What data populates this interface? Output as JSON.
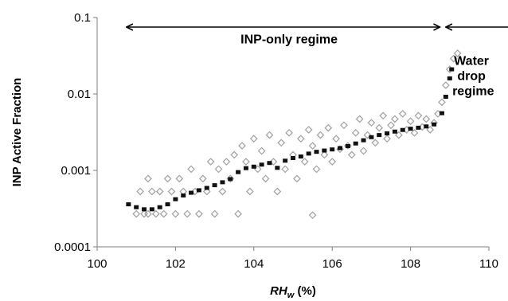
{
  "chart_data": {
    "type": "scatter",
    "title": "",
    "xlabel": {
      "symbol": "RH",
      "subscript": "w",
      "unit": " (%)"
    },
    "ylabel": "INP Active Fraction",
    "x_range": [
      100,
      110
    ],
    "y_range": [
      0.0001,
      0.1
    ],
    "y_scale": "log",
    "x_ticks": [
      {
        "value": 100,
        "label": "100"
      },
      {
        "value": 102,
        "label": "102"
      },
      {
        "value": 104,
        "label": "104"
      },
      {
        "value": 106,
        "label": "106"
      },
      {
        "value": 108,
        "label": "108"
      },
      {
        "value": 110,
        "label": "110"
      }
    ],
    "y_ticks": [
      {
        "value": 0.0001,
        "label": "0.0001"
      },
      {
        "value": 0.001,
        "label": "0.001"
      },
      {
        "value": 0.01,
        "label": "0.01"
      },
      {
        "value": 0.1,
        "label": "0.1"
      }
    ],
    "grid": false,
    "legend": "none",
    "annotations": {
      "inp_regime": {
        "text": "INP-only regime",
        "x": 104.9,
        "y": 0.046,
        "arrow_x": [
          100.75,
          108.75
        ],
        "arrow_y": 0.075
      },
      "water_regime": {
        "lines": [
          "Water",
          "drop",
          "regime"
        ],
        "x": 109.6,
        "y": 0.024,
        "arrow_x": [
          108.9,
          110.9
        ],
        "arrow_y": 0.075
      }
    },
    "series": [
      {
        "marker": "open-diamond",
        "color": "#a0a0a0",
        "points": [
          [
            101.0,
            0.00027
          ],
          [
            101.1,
            0.00053
          ],
          [
            101.2,
            0.00027
          ],
          [
            101.3,
            0.00078
          ],
          [
            101.3,
            0.00027
          ],
          [
            101.4,
            0.00053
          ],
          [
            101.5,
            0.00027
          ],
          [
            101.6,
            0.00053
          ],
          [
            101.7,
            0.00027
          ],
          [
            101.8,
            0.00078
          ],
          [
            101.9,
            0.00053
          ],
          [
            102.0,
            0.00027
          ],
          [
            102.1,
            0.00078
          ],
          [
            102.2,
            0.00053
          ],
          [
            102.3,
            0.00027
          ],
          [
            102.4,
            0.00104
          ],
          [
            102.5,
            0.00053
          ],
          [
            102.6,
            0.00027
          ],
          [
            102.7,
            0.00078
          ],
          [
            102.8,
            0.00053
          ],
          [
            102.9,
            0.0013
          ],
          [
            103.0,
            0.00027
          ],
          [
            103.1,
            0.00104
          ],
          [
            103.2,
            0.00053
          ],
          [
            103.3,
            0.0013
          ],
          [
            103.4,
            0.00078
          ],
          [
            103.5,
            0.0016
          ],
          [
            103.6,
            0.00027
          ],
          [
            103.7,
            0.0021
          ],
          [
            103.8,
            0.0013
          ],
          [
            103.9,
            0.00053
          ],
          [
            104.0,
            0.0026
          ],
          [
            104.1,
            0.00104
          ],
          [
            104.2,
            0.0018
          ],
          [
            104.3,
            0.00078
          ],
          [
            104.4,
            0.0029
          ],
          [
            104.5,
            0.0013
          ],
          [
            104.6,
            0.00053
          ],
          [
            104.7,
            0.0023
          ],
          [
            104.8,
            0.00104
          ],
          [
            104.9,
            0.0031
          ],
          [
            105.0,
            0.0016
          ],
          [
            105.1,
            0.00078
          ],
          [
            105.2,
            0.0026
          ],
          [
            105.3,
            0.0013
          ],
          [
            105.4,
            0.0034
          ],
          [
            105.5,
            0.00026
          ],
          [
            105.5,
            0.0021
          ],
          [
            105.6,
            0.00104
          ],
          [
            105.7,
            0.0029
          ],
          [
            105.8,
            0.0016
          ],
          [
            105.9,
            0.0036
          ],
          [
            106.0,
            0.0013
          ],
          [
            106.1,
            0.0026
          ],
          [
            106.2,
            0.0019
          ],
          [
            106.3,
            0.0039
          ],
          [
            106.4,
            0.0021
          ],
          [
            106.5,
            0.0016
          ],
          [
            106.6,
            0.0031
          ],
          [
            106.7,
            0.0047
          ],
          [
            106.8,
            0.0018
          ],
          [
            106.9,
            0.0029
          ],
          [
            107.0,
            0.0042
          ],
          [
            107.1,
            0.0023
          ],
          [
            107.2,
            0.0036
          ],
          [
            107.3,
            0.0052
          ],
          [
            107.4,
            0.0026
          ],
          [
            107.5,
            0.0039
          ],
          [
            107.6,
            0.0047
          ],
          [
            107.7,
            0.0029
          ],
          [
            107.8,
            0.0055
          ],
          [
            107.9,
            0.0034
          ],
          [
            108.0,
            0.0044
          ],
          [
            108.1,
            0.0031
          ],
          [
            108.2,
            0.0052
          ],
          [
            108.3,
            0.0037
          ],
          [
            108.4,
            0.0047
          ],
          [
            108.5,
            0.0034
          ],
          [
            108.6,
            0.0042
          ],
          [
            108.7,
            0.0055
          ],
          [
            108.8,
            0.0078
          ],
          [
            108.9,
            0.013
          ],
          [
            109.0,
            0.021
          ],
          [
            109.1,
            0.029
          ],
          [
            109.2,
            0.034
          ]
        ]
      },
      {
        "marker": "filled-square",
        "color": "#111111",
        "points": [
          [
            100.8,
            0.00036
          ],
          [
            101.0,
            0.00033
          ],
          [
            101.2,
            0.00031
          ],
          [
            101.4,
            0.00031
          ],
          [
            101.6,
            0.00033
          ],
          [
            101.8,
            0.00036
          ],
          [
            102.0,
            0.00042
          ],
          [
            102.2,
            0.00047
          ],
          [
            102.4,
            0.00051
          ],
          [
            102.6,
            0.00055
          ],
          [
            102.8,
            0.00059
          ],
          [
            103.0,
            0.00064
          ],
          [
            103.2,
            0.0007
          ],
          [
            103.4,
            0.00077
          ],
          [
            103.6,
            0.00095
          ],
          [
            103.8,
            0.00107
          ],
          [
            104.0,
            0.00112
          ],
          [
            104.2,
            0.00119
          ],
          [
            104.4,
            0.00125
          ],
          [
            104.6,
            0.00108
          ],
          [
            104.8,
            0.00134
          ],
          [
            105.0,
            0.00145
          ],
          [
            105.2,
            0.00152
          ],
          [
            105.4,
            0.00166
          ],
          [
            105.6,
            0.00175
          ],
          [
            105.8,
            0.00182
          ],
          [
            106.0,
            0.00188
          ],
          [
            106.2,
            0.00196
          ],
          [
            106.4,
            0.00208
          ],
          [
            106.6,
            0.00225
          ],
          [
            106.8,
            0.00248
          ],
          [
            107.0,
            0.00272
          ],
          [
            107.2,
            0.0029
          ],
          [
            107.4,
            0.00305
          ],
          [
            107.6,
            0.00322
          ],
          [
            107.8,
            0.00338
          ],
          [
            108.0,
            0.00351
          ],
          [
            108.2,
            0.00362
          ],
          [
            108.4,
            0.00376
          ],
          [
            108.6,
            0.004
          ],
          [
            108.8,
            0.0056
          ],
          [
            108.9,
            0.0092
          ],
          [
            109.0,
            0.016
          ],
          [
            109.05,
            0.021
          ]
        ]
      }
    ]
  }
}
